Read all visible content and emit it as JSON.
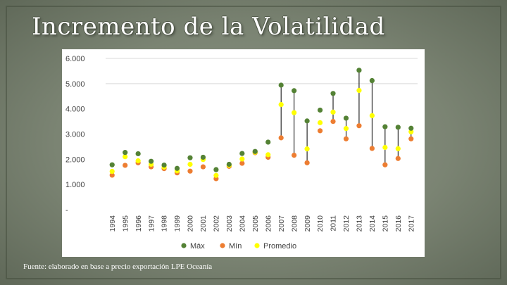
{
  "slide": {
    "title": "Incremento de la Volatilidad",
    "source": "Fuente: elaborado en base a  precio  exportación LPE Oceanía"
  },
  "colors": {
    "max": "#548235",
    "min": "#ed7d31",
    "avg": "#ffff00",
    "gridline": "#d9d9d9",
    "errorbar": "#000000"
  },
  "chart_data": {
    "type": "scatter",
    "categories": [
      "1994",
      "1995",
      "1996",
      "1997",
      "1998",
      "1999",
      "2000",
      "2001",
      "2002",
      "2003",
      "2004",
      "2005",
      "2006",
      "2007",
      "2008",
      "2009",
      "2010",
      "2011",
      "2012",
      "2013",
      "2014",
      "2015",
      "2016",
      "2017"
    ],
    "series": [
      {
        "name": "Máx",
        "values": [
          1780,
          2270,
          2220,
          1920,
          1770,
          1640,
          2060,
          2080,
          1590,
          1800,
          2230,
          2310,
          2680,
          4940,
          4720,
          3520,
          3950,
          4610,
          3630,
          5530,
          5120,
          3290,
          3270,
          3230
        ]
      },
      {
        "name": "Mín",
        "values": [
          1370,
          1760,
          1860,
          1700,
          1630,
          1460,
          1530,
          1700,
          1230,
          1720,
          1840,
          2260,
          2080,
          2850,
          2160,
          1860,
          3130,
          3500,
          2810,
          3330,
          2430,
          1780,
          2030,
          2810
        ]
      },
      {
        "name": "Promedio",
        "values": [
          1520,
          2100,
          1940,
          1800,
          1690,
          1540,
          1800,
          1990,
          1360,
          1760,
          2010,
          2280,
          2180,
          4170,
          3850,
          2410,
          3450,
          3870,
          3220,
          4730,
          3730,
          2470,
          2420,
          3090
        ]
      }
    ],
    "range_bars": [
      "2007",
      "2008",
      "2009",
      "2011",
      "2012",
      "2013",
      "2014",
      "2015",
      "2016",
      "2017"
    ],
    "yticks": [
      "6.000",
      "5.000",
      "4.000",
      "3.000",
      "2.000",
      "1.000",
      "-"
    ],
    "ylim": [
      0,
      6000
    ],
    "legend": [
      "Máx",
      "Mín",
      "Promedio"
    ],
    "legend_position": "bottom"
  }
}
